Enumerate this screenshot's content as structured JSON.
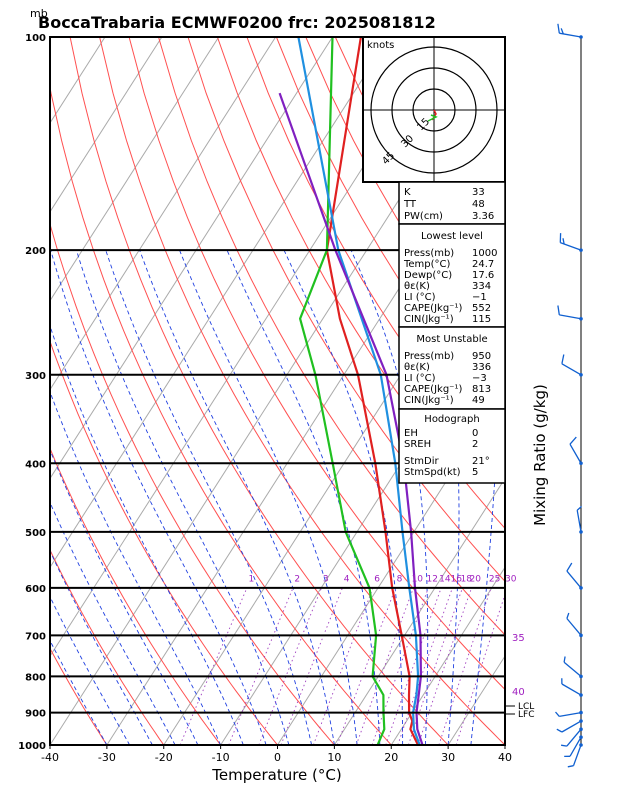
{
  "header": {
    "mb_label": "mb",
    "title": "BoccaTrabaria ECMWF0200  frc: 2025081812"
  },
  "axes": {
    "xlabel": "Temperature (°C)",
    "right_label": "Mixing Ratio (g/kg)"
  },
  "hodograph": {
    "unit_label": "knots",
    "ring_labels": [
      "15",
      "30",
      "45"
    ]
  },
  "indices": [
    {
      "label": "K",
      "value": "33"
    },
    {
      "label": "TT",
      "value": "48"
    },
    {
      "label": "PW(cm)",
      "value": "3.36"
    }
  ],
  "lowest_level": {
    "heading": "Lowest level",
    "rows": [
      {
        "label": "Press(mb)",
        "value": "1000"
      },
      {
        "label": "Temp(°C)",
        "value": "24.7"
      },
      {
        "label": "Dewp(°C)",
        "value": "17.6"
      },
      {
        "label": "θε(K)",
        "value": "334"
      },
      {
        "label": "LI (°C)",
        "value": "−1"
      },
      {
        "label": "CAPE(Jkg⁻¹)",
        "value": "552"
      },
      {
        "label": "CIN(Jkg⁻¹)",
        "value": "115"
      }
    ]
  },
  "most_unstable": {
    "heading": "Most Unstable",
    "rows": [
      {
        "label": "Press(mb)",
        "value": "950"
      },
      {
        "label": "θε(K)",
        "value": "336"
      },
      {
        "label": "LI (°C)",
        "value": "−3"
      },
      {
        "label": "CAPE(Jkg⁻¹)",
        "value": "813"
      },
      {
        "label": "CIN(Jkg⁻¹)",
        "value": "49"
      }
    ]
  },
  "hodograph_table": {
    "heading": "Hodograph",
    "rows": [
      {
        "label": "EH",
        "value": "0"
      },
      {
        "label": "SREH",
        "value": "2"
      },
      {
        "label": "StmDir",
        "value": "21°"
      },
      {
        "label": "StmSpd(kt)",
        "value": "5"
      }
    ]
  },
  "level_labels": {
    "lcl": "LCL",
    "lfc": "LFC"
  },
  "theta_e_labels": [
    "35",
    "40"
  ],
  "chart_data": {
    "type": "line",
    "title": "BoccaTrabaria ECMWF0200  frc: 2025081812",
    "xlabel": "Temperature (°C)",
    "ylabel": "mb",
    "xlim": [
      -40,
      40
    ],
    "ylim": [
      1000,
      100
    ],
    "x_ticks": [
      -40,
      -30,
      -20,
      -10,
      0,
      10,
      20,
      30,
      40
    ],
    "y_ticks": [
      100,
      200,
      300,
      400,
      500,
      600,
      700,
      800,
      900,
      1000
    ],
    "mixing_ratio_labels": [
      "1",
      "2",
      "3",
      "4",
      "6",
      "8",
      "10",
      "12",
      "14",
      "16",
      "18",
      "20",
      "25",
      "30"
    ],
    "series": [
      {
        "name": "Temperature",
        "color": "#e02020",
        "points": [
          [
            1000,
            24.7
          ],
          [
            950,
            21.6
          ],
          [
            925,
            21.0
          ],
          [
            900,
            19.5
          ],
          [
            850,
            17.5
          ],
          [
            800,
            15.5
          ],
          [
            700,
            9.5
          ],
          [
            600,
            2.5
          ],
          [
            500,
            -5.0
          ],
          [
            400,
            -14.5
          ],
          [
            300,
            -27.5
          ],
          [
            250,
            -37.0
          ],
          [
            200,
            -47.0
          ],
          [
            100,
            -65.0
          ]
        ]
      },
      {
        "name": "Dew point",
        "color": "#20c020",
        "points": [
          [
            1000,
            17.6
          ],
          [
            950,
            17.0
          ],
          [
            900,
            15.0
          ],
          [
            850,
            13.0
          ],
          [
            800,
            9.0
          ],
          [
            700,
            5.0
          ],
          [
            600,
            -1.5
          ],
          [
            500,
            -12.0
          ],
          [
            400,
            -22.0
          ],
          [
            300,
            -35.0
          ],
          [
            250,
            -44.0
          ],
          [
            200,
            -47.0
          ],
          [
            100,
            -70.0
          ]
        ]
      },
      {
        "name": "Virtual temperature",
        "color": "#2090e0",
        "points": [
          [
            1000,
            25.0
          ],
          [
            950,
            22.2
          ],
          [
            900,
            20.2
          ],
          [
            850,
            18.8
          ],
          [
            800,
            17.0
          ],
          [
            700,
            12.0
          ],
          [
            600,
            5.5
          ],
          [
            500,
            -2.0
          ],
          [
            400,
            -11.0
          ],
          [
            300,
            -23.5
          ],
          [
            200,
            -45.0
          ],
          [
            100,
            -76.0
          ]
        ]
      },
      {
        "name": "Parcel",
        "color": "#8020c0",
        "points": [
          [
            1000,
            25.5
          ],
          [
            950,
            22.8
          ],
          [
            900,
            20.8
          ],
          [
            850,
            19.2
          ],
          [
            800,
            17.5
          ],
          [
            700,
            12.8
          ],
          [
            600,
            6.5
          ],
          [
            500,
            -0.5
          ],
          [
            400,
            -9.5
          ],
          [
            300,
            -22.5
          ],
          [
            200,
            -45.5
          ],
          [
            120,
            -73.0
          ]
        ]
      }
    ],
    "wind_barbs": [
      {
        "pressure": 1000,
        "direction": 200,
        "speed_kt": 5
      },
      {
        "pressure": 975,
        "direction": 210,
        "speed_kt": 5
      },
      {
        "pressure": 950,
        "direction": 220,
        "speed_kt": 5
      },
      {
        "pressure": 925,
        "direction": 240,
        "speed_kt": 5
      },
      {
        "pressure": 900,
        "direction": 260,
        "speed_kt": 5
      },
      {
        "pressure": 850,
        "direction": 300,
        "speed_kt": 5
      },
      {
        "pressure": 800,
        "direction": 310,
        "speed_kt": 5
      },
      {
        "pressure": 700,
        "direction": 320,
        "speed_kt": 5
      },
      {
        "pressure": 600,
        "direction": 320,
        "speed_kt": 10
      },
      {
        "pressure": 500,
        "direction": 350,
        "speed_kt": 5
      },
      {
        "pressure": 400,
        "direction": 330,
        "speed_kt": 10
      },
      {
        "pressure": 300,
        "direction": 300,
        "speed_kt": 10
      },
      {
        "pressure": 250,
        "direction": 280,
        "speed_kt": 10
      },
      {
        "pressure": 200,
        "direction": 290,
        "speed_kt": 15
      },
      {
        "pressure": 100,
        "direction": 280,
        "speed_kt": 15
      }
    ]
  }
}
